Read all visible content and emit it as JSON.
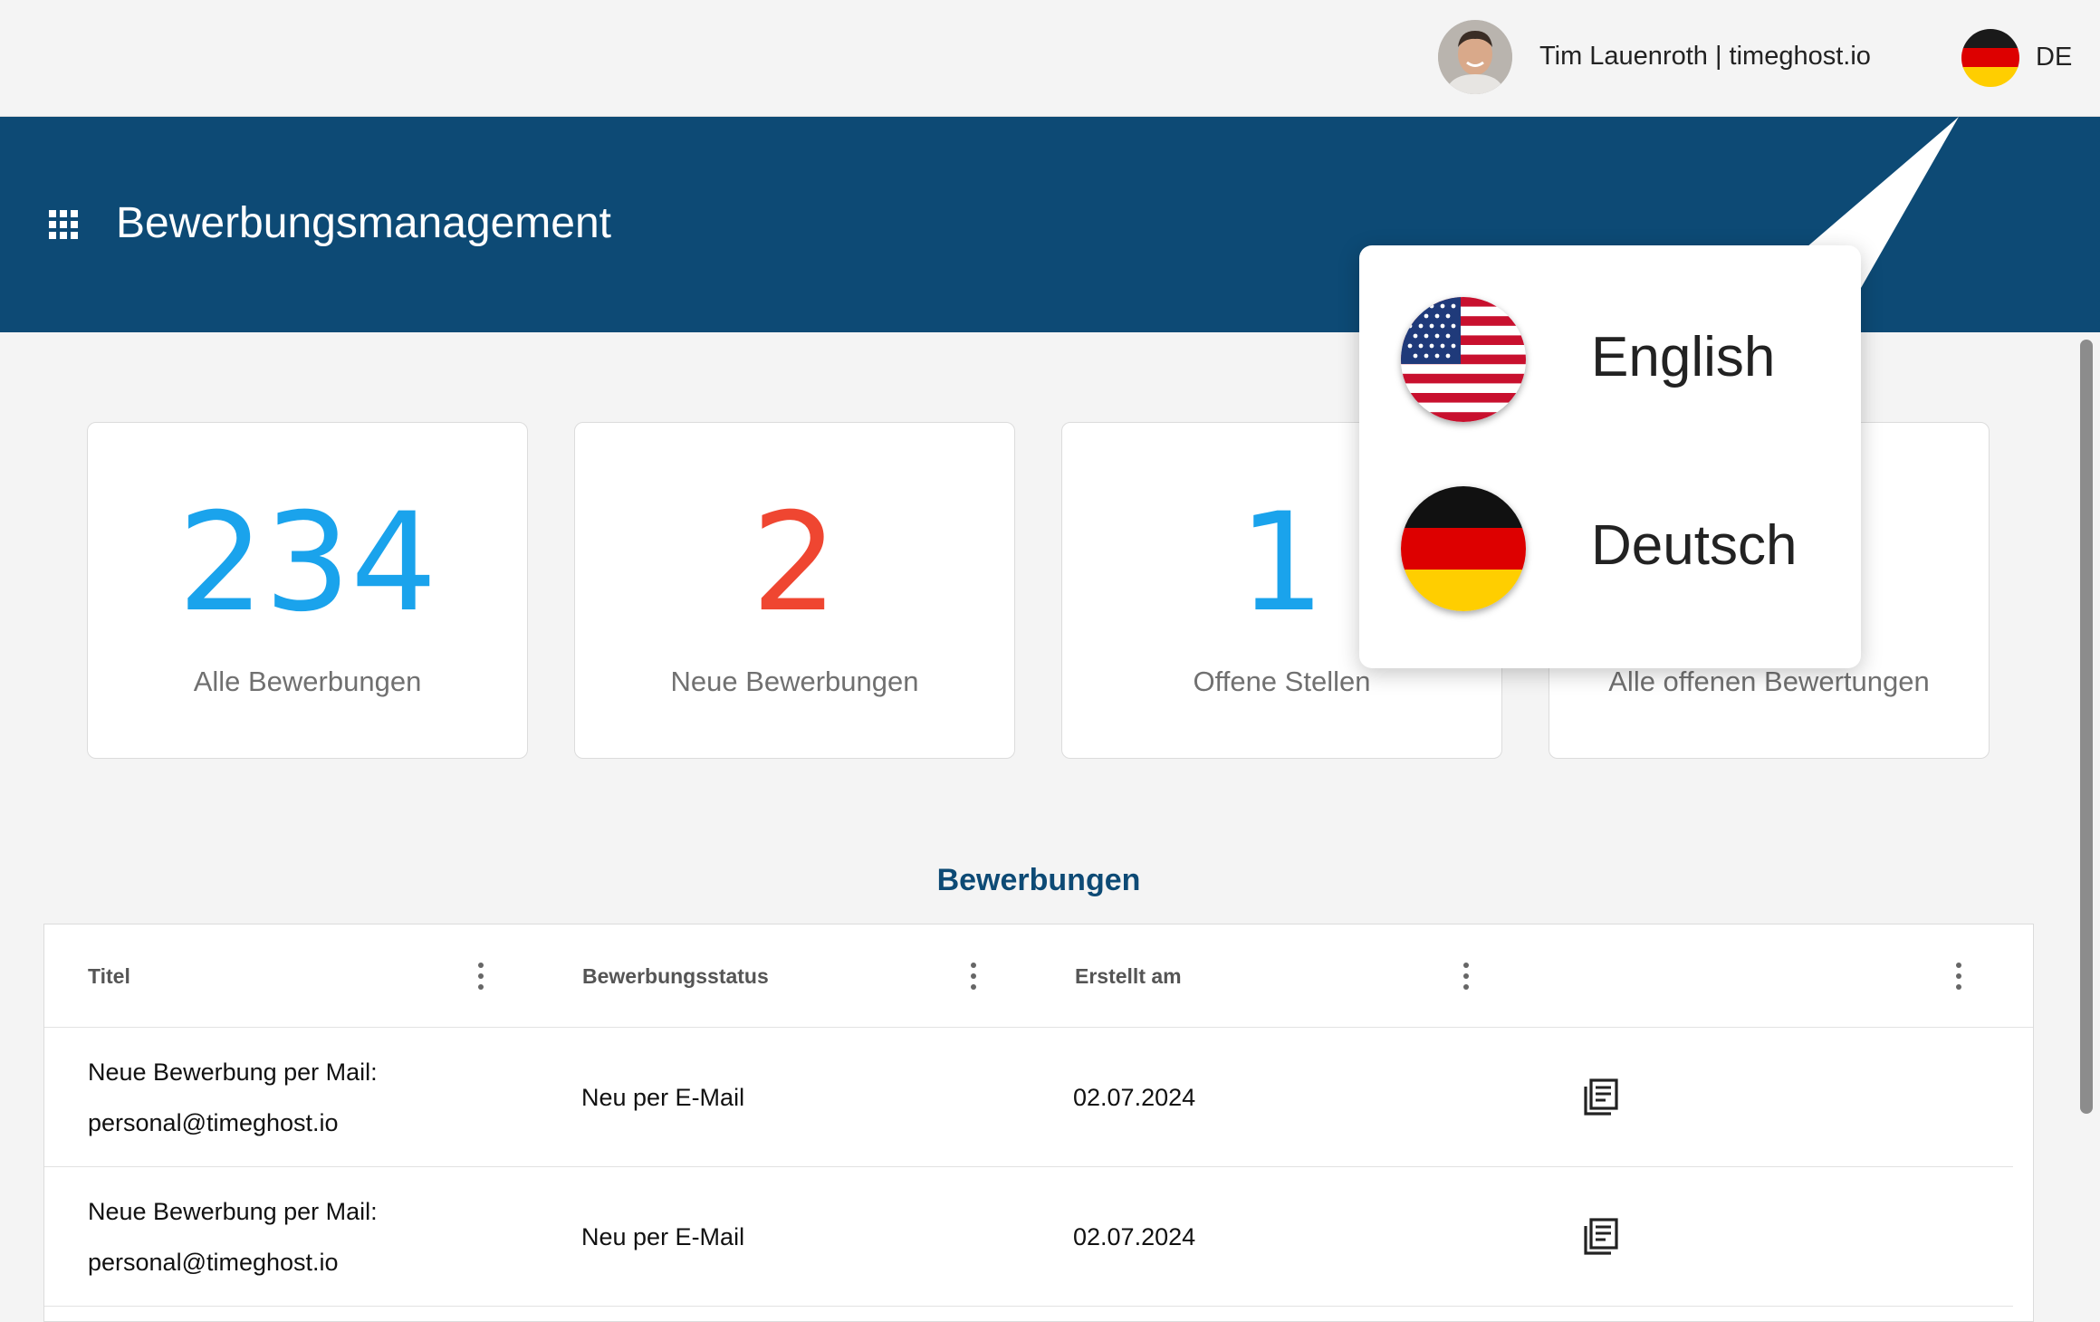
{
  "user": {
    "name": "Tim Lauenroth | timeghost.io",
    "language_code": "DE"
  },
  "header": {
    "title": "Bewerbungsmanagement"
  },
  "stats": [
    {
      "value": "234",
      "label": "Alle Bewerbungen",
      "color": "#1aa3ec"
    },
    {
      "value": "2",
      "label": "Neue Bewerbungen",
      "color": "#ef4631"
    },
    {
      "value": "1",
      "label": "Offene Stellen",
      "color": "#1aa3ec"
    },
    {
      "value": "",
      "label": "Alle offenen Bewertungen",
      "color": "#1aa3ec"
    }
  ],
  "table": {
    "title": "Bewerbungen",
    "columns": [
      "Titel",
      "Bewerbungsstatus",
      "Erstellt am",
      ""
    ],
    "rows": [
      {
        "title_line1": "Neue Bewerbung per Mail:",
        "title_line2": "personal@timeghost.io",
        "status": "Neu per E-Mail",
        "created": "02.07.2024",
        "icon": "document-icon"
      },
      {
        "title_line1": "Neue Bewerbung per Mail:",
        "title_line2": "personal@timeghost.io",
        "status": "Neu per E-Mail",
        "created": "02.07.2024",
        "icon": "document-icon"
      }
    ]
  },
  "language_menu": {
    "options": [
      {
        "label": "English",
        "flag": "us-flag-icon"
      },
      {
        "label": "Deutsch",
        "flag": "de-flag-icon"
      }
    ]
  },
  "colors": {
    "primary": "#0d4a75",
    "accent_blue": "#1aa3ec",
    "accent_red": "#ef4631"
  }
}
